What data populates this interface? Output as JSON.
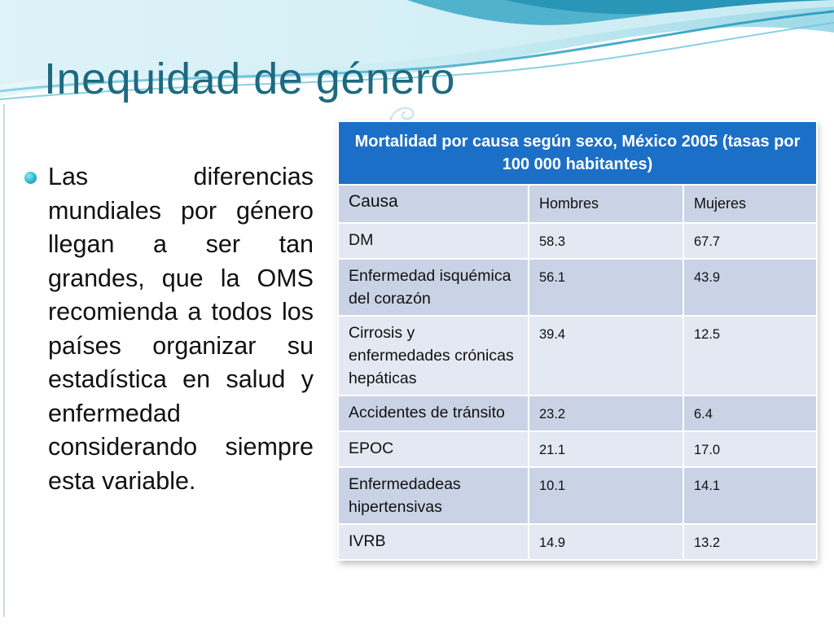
{
  "slide": {
    "title": "Inequidad de género",
    "bullet": "Las diferencias mundiales por género llegan a ser tan grandes, que la OMS recomienda a todos los países organizar su estadística en salud y enfermedad considerando siempre esta variable."
  },
  "table": {
    "caption": "Mortalidad por  causa según sexo, México 2005 (tasas por 100 000 habitantes)",
    "headers": [
      "Causa",
      "Hombres",
      "Mujeres"
    ],
    "rows": [
      {
        "causa": "DM",
        "hombres": "58.3",
        "mujeres": "67.7"
      },
      {
        "causa": "Enfermedad isquémica del corazón",
        "hombres": "56.1",
        "mujeres": "43.9"
      },
      {
        "causa": "Cirrosis y enfermedades crónicas hepáticas",
        "hombres": "39.4",
        "mujeres": "12.5"
      },
      {
        "causa": "Accidentes de tránsito",
        "hombres": "23.2",
        "mujeres": "6.4"
      },
      {
        "causa": "EPOC",
        "hombres": "21.1",
        "mujeres": "17.0"
      },
      {
        "causa": "Enfermedadeas hipertensivas",
        "hombres": "10.1",
        "mujeres": "14.1"
      },
      {
        "causa": "IVRB",
        "hombres": "14.9",
        "mujeres": "13.2"
      }
    ]
  },
  "colors": {
    "title": "#1d6a80",
    "table_header": "#1c6fc7",
    "row_dark": "#c9d3e5",
    "row_light": "#e3e8f2",
    "wave_light": "#bfe7f0",
    "wave_dark": "#4fb6cf"
  }
}
